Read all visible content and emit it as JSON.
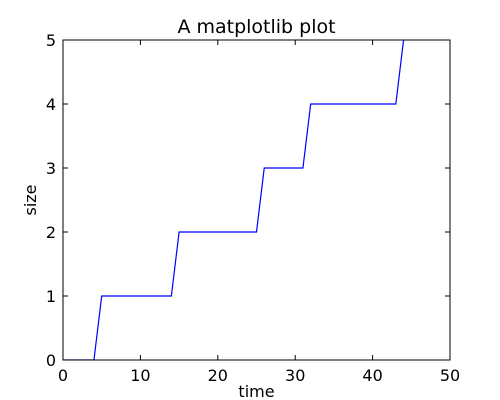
{
  "chart_data": {
    "type": "line",
    "title": "A matplotlib plot",
    "xlabel": "time",
    "ylabel": "size",
    "xlim": [
      0,
      50
    ],
    "ylim": [
      0,
      5
    ],
    "xticks": [
      0,
      10,
      20,
      30,
      40,
      50
    ],
    "yticks": [
      0,
      1,
      2,
      3,
      4,
      5
    ],
    "grid": false,
    "legend": false,
    "series": [
      {
        "color": "#0000ff",
        "x": [
          0,
          4,
          5,
          14,
          15,
          25,
          26,
          31,
          32,
          43,
          44
        ],
        "y": [
          0,
          0,
          1,
          1,
          2,
          2,
          3,
          3,
          4,
          4,
          5
        ]
      }
    ]
  }
}
